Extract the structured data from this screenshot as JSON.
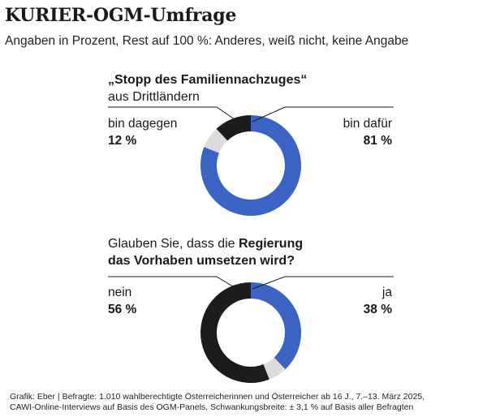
{
  "header": {
    "title": "KURIER-OGM-Umfrage",
    "subtitle": "Angaben in Prozent, Rest auf 100 %: Anderes, weiß nicht, keine Angabe"
  },
  "footer": {
    "line1": "Grafik: Eber | Befragte: 1.010 wahlberechtigte Österreicherinnen und Österreicher ab 16 J., 7.–13. März 2025,",
    "line2": "CAWI-Online-Interviews  auf Basis des OGM-Panels, Schwankungsbreite: ± 3,1 % auf Basis aller Befragten"
  },
  "colors": {
    "blue": "#3a63c4",
    "black": "#1c1c1c",
    "grey": "#dcdcdc"
  },
  "chart_data": [
    {
      "type": "pie",
      "title_line1": "„Stopp des Familiennachzuges“",
      "title_line2": "aus Drittländern",
      "slices": [
        {
          "label": "bin dafür",
          "value": 81,
          "value_label": "81 %",
          "color": "#3a63c4"
        },
        {
          "label": "Rest",
          "value": 7,
          "color": "#dcdcdc"
        },
        {
          "label": "bin dagegen",
          "value": 12,
          "value_label": "12 %",
          "color": "#1c1c1c"
        }
      ]
    },
    {
      "type": "pie",
      "title_line1_a": "Glauben Sie, dass die ",
      "title_line1_b": "Regierung",
      "title_line2": "das Vorhaben umsetzen wird?",
      "slices": [
        {
          "label": "ja",
          "value": 38,
          "value_label": "38 %",
          "color": "#3a63c4"
        },
        {
          "label": "Rest",
          "value": 6,
          "color": "#dcdcdc"
        },
        {
          "label": "nein",
          "value": 56,
          "value_label": "56 %",
          "color": "#1c1c1c"
        }
      ]
    }
  ]
}
